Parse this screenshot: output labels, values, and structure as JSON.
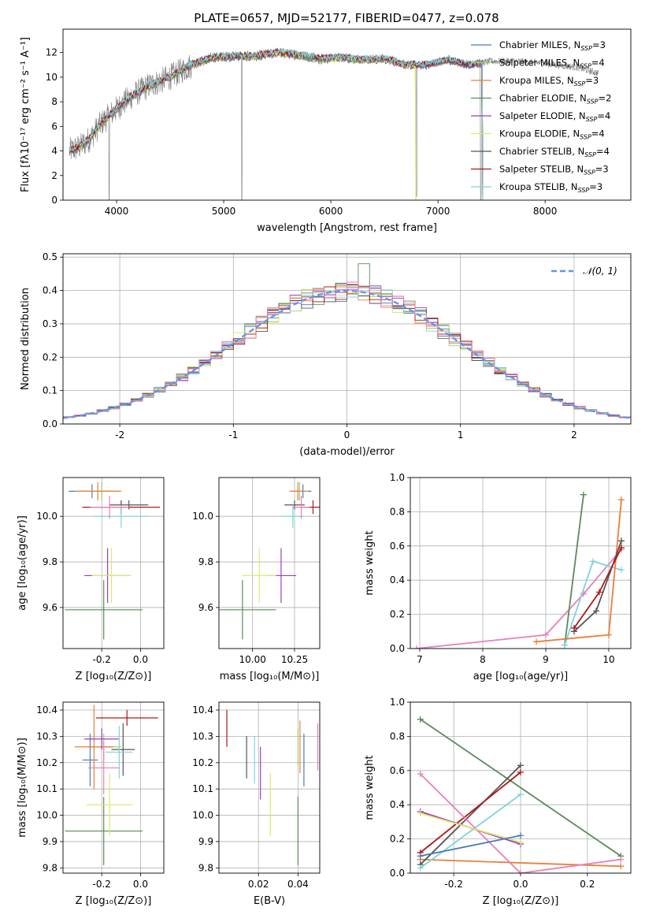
{
  "figure": {
    "title": "PLATE=0657, MJD=52177, FIBERID=0477, z=0.078"
  },
  "colors": {
    "models": [
      "#4a7ab8",
      "#9bd06a",
      "#e8803a",
      "#5a8a5a",
      "#9b3dbd",
      "#dde86a",
      "#555555",
      "#b01818",
      "#7fd3da",
      "#e87fb8"
    ],
    "obs": "#808080",
    "gauss": "#6495ed",
    "grid": "#b0b0b0"
  },
  "chart_data": [
    {
      "id": "spectrum",
      "type": "line",
      "xlabel": "wavelength [Angstrom, rest frame]",
      "ylabel": "Flux [fλ10⁻¹⁷ erg cm⁻² s⁻¹ A⁻¹]",
      "xlim": [
        3500,
        8800
      ],
      "ylim": [
        0,
        13.9
      ],
      "xticks": [
        4000,
        5000,
        6000,
        7000,
        8000
      ],
      "yticks": [
        0,
        2,
        4,
        6,
        8,
        10,
        12
      ],
      "grid": false,
      "legend_position": "right",
      "legend": [
        {
          "label": "Chabrier MILES, N",
          "sub": "SSP",
          "eq": "=3",
          "color": "#4a7ab8"
        },
        {
          "label": "Salpeter MILES, N",
          "sub": "SSP",
          "eq": "=4",
          "color": "#9bd06a"
        },
        {
          "label": "Kroupa MILES, N",
          "sub": "SSP",
          "eq": "=3",
          "color": "#e8803a"
        },
        {
          "label": "Chabrier ELODIE, N",
          "sub": "SSP",
          "eq": "=2",
          "color": "#5a8a5a"
        },
        {
          "label": "Salpeter ELODIE, N",
          "sub": "SSP",
          "eq": "=4",
          "color": "#9b3dbd"
        },
        {
          "label": "Kroupa ELODIE, N",
          "sub": "SSP",
          "eq": "=4",
          "color": "#dde86a"
        },
        {
          "label": "Chabrier STELIB, N",
          "sub": "SSP",
          "eq": "=4",
          "color": "#555555"
        },
        {
          "label": "Salpeter STELIB, N",
          "sub": "SSP",
          "eq": "=3",
          "color": "#b01818"
        },
        {
          "label": "Kroupa STELIB, N",
          "sub": "SSP",
          "eq": "=3",
          "color": "#7fd3da"
        }
      ],
      "continuum": [
        [
          3560,
          4.0
        ],
        [
          3650,
          4.3
        ],
        [
          3750,
          5.0
        ],
        [
          3850,
          6.2
        ],
        [
          3950,
          7.0
        ],
        [
          4050,
          7.8
        ],
        [
          4150,
          8.5
        ],
        [
          4300,
          9.3
        ],
        [
          4500,
          10.0
        ],
        [
          4700,
          11.0
        ],
        [
          4900,
          11.6
        ],
        [
          5100,
          11.7
        ],
        [
          5300,
          11.7
        ],
        [
          5500,
          12.0
        ],
        [
          5700,
          11.8
        ],
        [
          5900,
          11.5
        ],
        [
          6100,
          11.6
        ],
        [
          6300,
          11.4
        ],
        [
          6500,
          11.5
        ],
        [
          6700,
          11.0
        ],
        [
          6900,
          11.0
        ],
        [
          7100,
          11.4
        ],
        [
          7300,
          11.0
        ],
        [
          7500,
          11.3
        ],
        [
          7700,
          11.3
        ],
        [
          7900,
          11.2
        ],
        [
          8100,
          11.0
        ],
        [
          8300,
          10.8
        ],
        [
          8500,
          10.3
        ]
      ],
      "obs_noise_start": 3560,
      "obs_noise_end": 8500,
      "model_start": 3560,
      "model_end": 7420,
      "dips": [
        {
          "x": 3930,
          "y": 0
        },
        {
          "x": 5170,
          "y": 0
        },
        {
          "x": 6800,
          "y": 0.3
        },
        {
          "x": 7400,
          "y": 0
        }
      ]
    },
    {
      "id": "residuals",
      "type": "bar",
      "xlabel": "(data-model)/error",
      "ylabel": "Normed distribution",
      "xlim": [
        -2.5,
        2.5
      ],
      "ylim": [
        0,
        0.51
      ],
      "xticks": [
        -2,
        -1,
        0,
        1,
        2
      ],
      "yticks": [
        0.0,
        0.1,
        0.2,
        0.3,
        0.4,
        0.5
      ],
      "grid": true,
      "legend": [
        {
          "label": "𝒩(0, 1)",
          "color": "#6495ed"
        }
      ],
      "bin_width": 0.1
    },
    {
      "id": "age-vs-Z",
      "type": "scatter",
      "xlabel": "Z [log₁₀(Z/Z⊙)]",
      "ylabel": "age  [log₁₀(age/yr)]",
      "xlim": [
        -0.4,
        0.12
      ],
      "ylim": [
        9.42,
        10.17
      ],
      "xticks": [
        -0.2,
        0.0
      ],
      "yticks": [
        9.6,
        9.8,
        10.0
      ],
      "grid": true,
      "points": [
        {
          "x": -0.25,
          "y": 10.11,
          "xerr": 0.12,
          "yerr": 0.03,
          "color": "#4a7ab8"
        },
        {
          "x": -0.2,
          "y": 10.11,
          "xerr": 0.1,
          "yerr": 0.04,
          "color": "#9bd06a"
        },
        {
          "x": -0.22,
          "y": 10.11,
          "xerr": 0.12,
          "yerr": 0.04,
          "color": "#e8803a"
        },
        {
          "x": -0.19,
          "y": 9.59,
          "xerr": 0.2,
          "yerr": 0.13,
          "color": "#5a8a5a"
        },
        {
          "x": -0.17,
          "y": 9.74,
          "xerr": 0.12,
          "yerr": 0.12,
          "color": "#9b3dbd"
        },
        {
          "x": -0.15,
          "y": 9.74,
          "xerr": 0.1,
          "yerr": 0.12,
          "color": "#dde86a"
        },
        {
          "x": -0.06,
          "y": 10.05,
          "xerr": 0.1,
          "yerr": 0.02,
          "color": "#555555"
        },
        {
          "x": -0.1,
          "y": 10.04,
          "xerr": 0.2,
          "yerr": 0.03,
          "color": "#b01818"
        },
        {
          "x": -0.1,
          "y": 10.0,
          "xerr": 0.14,
          "yerr": 0.05,
          "color": "#7fd3da"
        },
        {
          "x": -0.16,
          "y": 10.04,
          "xerr": 0.1,
          "yerr": 0.05,
          "color": "#e87fb8"
        }
      ]
    },
    {
      "id": "age-vs-mass",
      "type": "scatter",
      "xlabel": "mass [log₁₀(M/M⊙)]",
      "ylabel": "",
      "xlim": [
        9.8,
        10.4
      ],
      "ylim": [
        9.42,
        10.17
      ],
      "xticks": [
        10.0,
        10.25
      ],
      "yticks": [
        9.6,
        9.8,
        10.0
      ],
      "grid": true,
      "points": [
        {
          "x": 10.3,
          "y": 10.11,
          "xerr": 0.05,
          "yerr": 0.03,
          "color": "#4a7ab8"
        },
        {
          "x": 10.28,
          "y": 10.11,
          "xerr": 0.05,
          "yerr": 0.04,
          "color": "#9bd06a"
        },
        {
          "x": 10.27,
          "y": 10.11,
          "xerr": 0.05,
          "yerr": 0.04,
          "color": "#e8803a"
        },
        {
          "x": 9.94,
          "y": 9.59,
          "xerr": 0.2,
          "yerr": 0.13,
          "color": "#5a8a5a"
        },
        {
          "x": 10.17,
          "y": 9.74,
          "xerr": 0.09,
          "yerr": 0.12,
          "color": "#9b3dbd"
        },
        {
          "x": 10.04,
          "y": 9.74,
          "xerr": 0.1,
          "yerr": 0.12,
          "color": "#dde86a"
        },
        {
          "x": 10.25,
          "y": 10.05,
          "xerr": 0.06,
          "yerr": 0.02,
          "color": "#555555"
        },
        {
          "x": 10.36,
          "y": 10.04,
          "xerr": 0.06,
          "yerr": 0.03,
          "color": "#b01818"
        },
        {
          "x": 10.24,
          "y": 10.0,
          "xerr": 0.07,
          "yerr": 0.05,
          "color": "#7fd3da"
        },
        {
          "x": 10.29,
          "y": 10.04,
          "xerr": 0.05,
          "yerr": 0.05,
          "color": "#e87fb8"
        }
      ]
    },
    {
      "id": "weight-vs-age",
      "type": "line",
      "xlabel": "age  [log₁₀(age/yr)]",
      "ylabel": "mass weight",
      "xlim": [
        6.85,
        10.35
      ],
      "ylim": [
        0,
        1.0
      ],
      "xticks": [
        7,
        8,
        9,
        10
      ],
      "yticks": [
        0.0,
        0.2,
        0.4,
        0.6,
        0.8,
        1.0
      ],
      "grid": true,
      "series": [
        {
          "color": "#e87fb8",
          "x": [
            6.95,
            9.0,
            9.6,
            10.2
          ],
          "y": [
            0.0,
            0.08,
            0.32,
            0.58
          ]
        },
        {
          "color": "#5a8a5a",
          "x": [
            9.3,
            9.6
          ],
          "y": [
            0.02,
            0.9
          ]
        },
        {
          "color": "#7fd3da",
          "x": [
            9.3,
            9.75,
            10.2
          ],
          "y": [
            0.02,
            0.51,
            0.46
          ]
        },
        {
          "color": "#e8803a",
          "x": [
            8.85,
            10.0,
            10.2
          ],
          "y": [
            0.04,
            0.08,
            0.87
          ]
        },
        {
          "color": "#555555",
          "x": [
            9.45,
            9.8,
            10.2
          ],
          "y": [
            0.1,
            0.22,
            0.63
          ]
        },
        {
          "color": "#b01818",
          "x": [
            9.45,
            9.85,
            10.2
          ],
          "y": [
            0.12,
            0.33,
            0.59
          ]
        }
      ]
    },
    {
      "id": "mass-vs-Z",
      "type": "scatter",
      "xlabel": "Z [log₁₀(Z/Z⊙)]",
      "ylabel": "mass [log₁₀(M/M⊙)]",
      "xlim": [
        -0.4,
        0.12
      ],
      "ylim": [
        9.78,
        10.43
      ],
      "xticks": [
        -0.2,
        0.0
      ],
      "yticks": [
        9.8,
        9.9,
        10.0,
        10.1,
        10.2,
        10.3,
        10.4
      ],
      "grid": true,
      "points": [
        {
          "x": -0.26,
          "y": 10.21,
          "xerr": 0.04,
          "yerr": 0.1,
          "color": "#4a7ab8"
        },
        {
          "x": -0.19,
          "y": 10.26,
          "xerr": 0.09,
          "yerr": 0.05,
          "color": "#9bd06a"
        },
        {
          "x": -0.24,
          "y": 10.26,
          "xerr": 0.1,
          "yerr": 0.16,
          "color": "#e8803a"
        },
        {
          "x": -0.19,
          "y": 9.94,
          "xerr": 0.2,
          "yerr": 0.13,
          "color": "#5a8a5a"
        },
        {
          "x": -0.2,
          "y": 10.29,
          "xerr": 0.09,
          "yerr": 0.04,
          "color": "#9b3dbd"
        },
        {
          "x": -0.16,
          "y": 10.04,
          "xerr": 0.12,
          "yerr": 0.12,
          "color": "#dde86a"
        },
        {
          "x": -0.09,
          "y": 10.25,
          "xerr": 0.06,
          "yerr": 0.1,
          "color": "#555555"
        },
        {
          "x": -0.07,
          "y": 10.37,
          "xerr": 0.16,
          "yerr": 0.03,
          "color": "#b01818"
        },
        {
          "x": -0.11,
          "y": 10.24,
          "xerr": 0.07,
          "yerr": 0.1,
          "color": "#7fd3da"
        },
        {
          "x": -0.19,
          "y": 10.18,
          "xerr": 0.08,
          "yerr": 0.1,
          "color": "#e87fb8"
        }
      ]
    },
    {
      "id": "mass-vs-ebv",
      "type": "scatter",
      "xlabel": "E(B-V)",
      "ylabel": "",
      "xlim": [
        0.0,
        0.051
      ],
      "ylim": [
        9.78,
        10.43
      ],
      "xticks": [
        0.02,
        0.04
      ],
      "yticks": [
        9.8,
        9.9,
        10.0,
        10.1,
        10.2,
        10.3,
        10.4
      ],
      "grid": true,
      "points": [
        {
          "x": 0.043,
          "y": 10.21,
          "yerr": 0.1,
          "color": "#4a7ab8"
        },
        {
          "x": 0.04,
          "y": 10.26,
          "yerr": 0.07,
          "color": "#9bd06a"
        },
        {
          "x": 0.041,
          "y": 10.26,
          "yerr": 0.1,
          "color": "#e8803a"
        },
        {
          "x": 0.04,
          "y": 9.94,
          "yerr": 0.13,
          "color": "#5a8a5a"
        },
        {
          "x": 0.021,
          "y": 10.16,
          "yerr": 0.1,
          "color": "#9b3dbd"
        },
        {
          "x": 0.026,
          "y": 10.04,
          "yerr": 0.12,
          "color": "#dde86a"
        },
        {
          "x": 0.014,
          "y": 10.22,
          "yerr": 0.08,
          "color": "#555555"
        },
        {
          "x": 0.004,
          "y": 10.33,
          "yerr": 0.07,
          "color": "#b01818"
        },
        {
          "x": 0.018,
          "y": 10.21,
          "yerr": 0.09,
          "color": "#7fd3da"
        },
        {
          "x": 0.05,
          "y": 10.26,
          "yerr": 0.09,
          "color": "#e87fb8"
        }
      ]
    },
    {
      "id": "weight-vs-Z",
      "type": "line",
      "xlabel": "Z [log₁₀(Z/Z⊙)]",
      "ylabel": "mass weight",
      "xlim": [
        -0.33,
        0.33
      ],
      "ylim": [
        0,
        1.0
      ],
      "xticks": [
        -0.2,
        0.0,
        0.2
      ],
      "yticks": [
        0.0,
        0.2,
        0.4,
        0.6,
        0.8,
        1.0
      ],
      "grid": true,
      "series": [
        {
          "color": "#5a8a5a",
          "x": [
            -0.3,
            0.3
          ],
          "y": [
            0.9,
            0.1
          ]
        },
        {
          "color": "#e8803a",
          "x": [
            -0.3,
            0.3
          ],
          "y": [
            0.08,
            0.04
          ]
        },
        {
          "color": "#555555",
          "x": [
            -0.3,
            0.0
          ],
          "y": [
            0.05,
            0.63
          ]
        },
        {
          "color": "#b01818",
          "x": [
            -0.3,
            0.0
          ],
          "y": [
            0.12,
            0.59
          ]
        },
        {
          "color": "#7fd3da",
          "x": [
            -0.3,
            0.0
          ],
          "y": [
            0.03,
            0.46
          ]
        },
        {
          "color": "#e87fb8",
          "x": [
            -0.3,
            0.0,
            0.3
          ],
          "y": [
            0.58,
            0.0,
            0.08
          ]
        },
        {
          "color": "#9b3dbd",
          "x": [
            -0.3,
            0.0
          ],
          "y": [
            0.36,
            0.17
          ]
        },
        {
          "color": "#dde86a",
          "x": [
            -0.3,
            0.0
          ],
          "y": [
            0.35,
            0.18
          ]
        },
        {
          "color": "#4a7ab8",
          "x": [
            -0.3,
            0.0
          ],
          "y": [
            0.1,
            0.22
          ]
        }
      ]
    }
  ]
}
